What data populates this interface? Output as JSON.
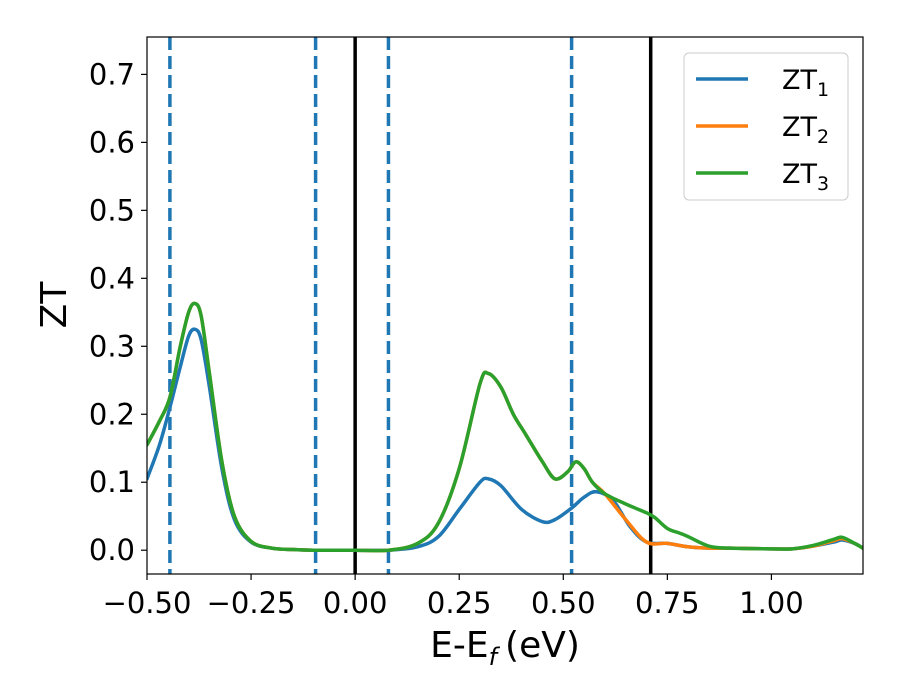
{
  "chart_data": {
    "type": "line",
    "xlabel": "E-E",
    "xlabel_sub": "f",
    "xlabel_unit": "(eV)",
    "ylabel": "ZT",
    "xlim": [
      -0.5,
      1.22
    ],
    "ylim": [
      -0.035,
      0.755
    ],
    "xticks": [
      -0.5,
      -0.25,
      0.0,
      0.25,
      0.5,
      0.75,
      1.0
    ],
    "xtick_labels": [
      "−0.50",
      "−0.25",
      "0.00",
      "0.25",
      "0.50",
      "0.75",
      "1.00"
    ],
    "yticks": [
      0.0,
      0.1,
      0.2,
      0.3,
      0.4,
      0.5,
      0.6,
      0.7
    ],
    "ytick_labels": [
      "0.0",
      "0.1",
      "0.2",
      "0.3",
      "0.4",
      "0.5",
      "0.6",
      "0.7"
    ],
    "grid": false,
    "legend_position": "top-right",
    "vlines_dashed": {
      "color": "#1f77b4",
      "x": [
        -0.445,
        -0.095,
        0.08,
        0.52
      ]
    },
    "vlines_solid": {
      "color": "#000000",
      "x": [
        0.0,
        0.71
      ]
    },
    "series": [
      {
        "name": "ZT",
        "sub": "1",
        "color": "#1f77b4",
        "x": [
          -0.5,
          -0.47,
          -0.445,
          -0.42,
          -0.4,
          -0.385,
          -0.37,
          -0.35,
          -0.32,
          -0.29,
          -0.25,
          -0.2,
          -0.15,
          -0.1,
          0.0,
          0.08,
          0.15,
          0.2,
          0.25,
          0.3,
          0.32,
          0.35,
          0.4,
          0.45,
          0.48,
          0.52,
          0.55,
          0.58,
          0.62,
          0.66,
          0.7,
          0.75,
          0.8,
          0.85,
          0.9,
          1.0,
          1.05,
          1.1,
          1.15,
          1.17,
          1.2,
          1.22
        ],
        "y": [
          0.105,
          0.155,
          0.21,
          0.27,
          0.315,
          0.325,
          0.31,
          0.24,
          0.12,
          0.045,
          0.012,
          0.003,
          0.001,
          0.0,
          0.0,
          0.0,
          0.005,
          0.02,
          0.06,
          0.1,
          0.105,
          0.095,
          0.06,
          0.042,
          0.045,
          0.062,
          0.078,
          0.086,
          0.073,
          0.035,
          0.012,
          0.01,
          0.005,
          0.003,
          0.003,
          0.002,
          0.002,
          0.006,
          0.012,
          0.015,
          0.01,
          0.003
        ]
      },
      {
        "name": "ZT",
        "sub": "2",
        "color": "#ff7f0e",
        "x": [
          -0.5,
          -0.47,
          -0.445,
          -0.42,
          -0.4,
          -0.385,
          -0.37,
          -0.35,
          -0.32,
          -0.29,
          -0.25,
          -0.2,
          -0.15,
          -0.1,
          0.0,
          0.08,
          0.15,
          0.2,
          0.25,
          0.3,
          0.32,
          0.35,
          0.38,
          0.41,
          0.45,
          0.48,
          0.51,
          0.53,
          0.55,
          0.57,
          0.6,
          0.65,
          0.7,
          0.75,
          0.8,
          0.85,
          0.9,
          1.0,
          1.05,
          1.1,
          1.15,
          1.17,
          1.2,
          1.22
        ],
        "y": [
          0.155,
          0.19,
          0.225,
          0.3,
          0.35,
          0.363,
          0.345,
          0.26,
          0.13,
          0.05,
          0.013,
          0.003,
          0.001,
          0.0,
          0.0,
          0.0,
          0.01,
          0.04,
          0.12,
          0.245,
          0.26,
          0.24,
          0.2,
          0.17,
          0.13,
          0.105,
          0.115,
          0.13,
          0.12,
          0.1,
          0.083,
          0.045,
          0.012,
          0.01,
          0.005,
          0.003,
          0.003,
          0.002,
          0.002,
          0.006,
          0.014,
          0.017,
          0.01,
          0.003
        ]
      },
      {
        "name": "ZT",
        "sub": "3",
        "color": "#2ca02c",
        "x": [
          -0.5,
          -0.47,
          -0.445,
          -0.42,
          -0.4,
          -0.385,
          -0.37,
          -0.35,
          -0.32,
          -0.29,
          -0.25,
          -0.2,
          -0.15,
          -0.1,
          0.0,
          0.08,
          0.15,
          0.2,
          0.25,
          0.3,
          0.32,
          0.35,
          0.38,
          0.41,
          0.45,
          0.48,
          0.51,
          0.53,
          0.55,
          0.57,
          0.6,
          0.65,
          0.7,
          0.72,
          0.75,
          0.78,
          0.8,
          0.85,
          0.9,
          1.0,
          1.05,
          1.1,
          1.15,
          1.17,
          1.2,
          1.22
        ],
        "y": [
          0.155,
          0.19,
          0.225,
          0.3,
          0.35,
          0.363,
          0.345,
          0.26,
          0.13,
          0.05,
          0.013,
          0.003,
          0.001,
          0.0,
          0.0,
          0.0,
          0.01,
          0.04,
          0.12,
          0.245,
          0.26,
          0.24,
          0.2,
          0.17,
          0.13,
          0.105,
          0.115,
          0.13,
          0.12,
          0.1,
          0.083,
          0.068,
          0.055,
          0.048,
          0.032,
          0.025,
          0.02,
          0.006,
          0.003,
          0.002,
          0.002,
          0.007,
          0.016,
          0.019,
          0.01,
          0.003
        ]
      }
    ]
  }
}
